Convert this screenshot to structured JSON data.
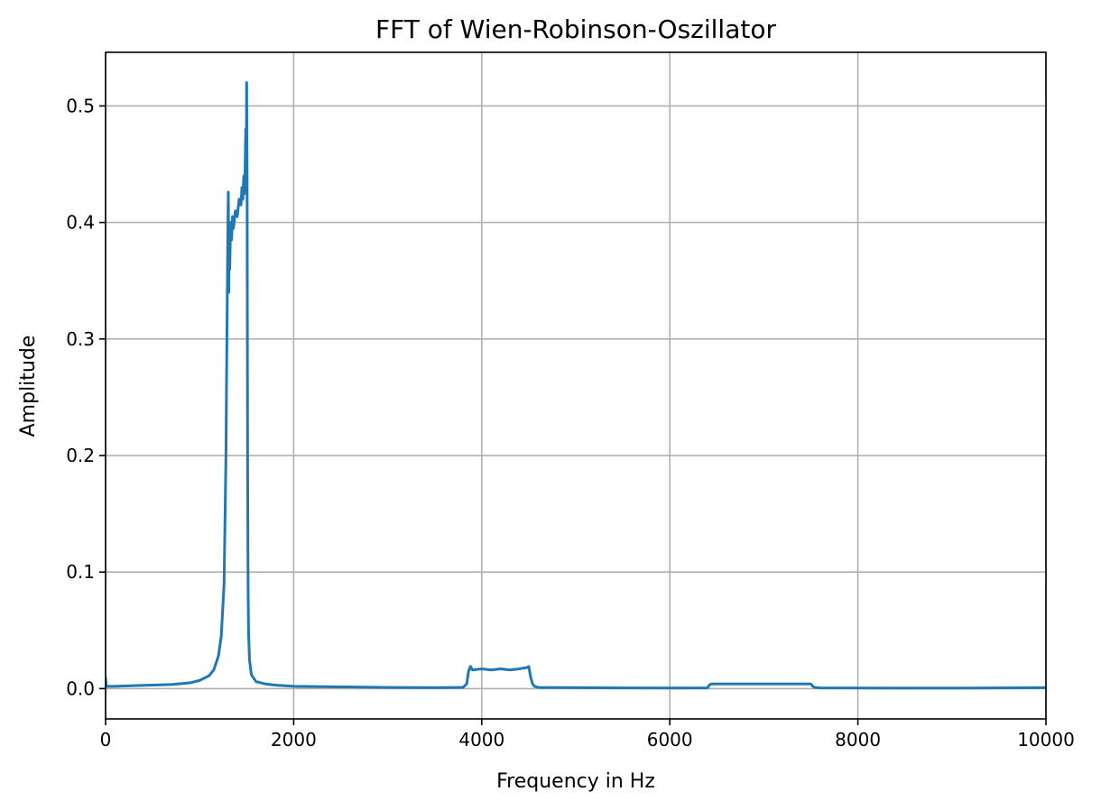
{
  "chart_data": {
    "type": "line",
    "title": "FFT of Wien-Robinson-Oszillator",
    "xlabel": "Frequency in Hz",
    "ylabel": "Amplitude",
    "xlim": [
      0,
      10000
    ],
    "ylim": [
      -0.026,
      0.546
    ],
    "xticks": [
      0,
      2000,
      4000,
      6000,
      8000,
      10000
    ],
    "xtick_labels": [
      "0",
      "2000",
      "4000",
      "6000",
      "8000",
      "10000"
    ],
    "yticks": [
      0.0,
      0.1,
      0.2,
      0.3,
      0.4,
      0.5
    ],
    "ytick_labels": [
      "0.0",
      "0.1",
      "0.2",
      "0.3",
      "0.4",
      "0.5"
    ],
    "grid": true,
    "color": "#1f77b4",
    "series": [
      {
        "x": [
          0,
          5,
          10,
          20,
          100,
          300,
          500,
          700,
          900,
          1000,
          1100,
          1150,
          1200,
          1230,
          1260,
          1280,
          1290,
          1300,
          1305,
          1310,
          1315,
          1320,
          1330,
          1340,
          1350,
          1360,
          1380,
          1400,
          1420,
          1440,
          1450,
          1460,
          1470,
          1480,
          1490,
          1495,
          1500,
          1505,
          1510,
          1515,
          1520,
          1530,
          1550,
          1600,
          1700,
          1800,
          2000,
          2500,
          3000,
          3500,
          3800,
          3840,
          3860,
          3880,
          3900,
          4000,
          4100,
          4200,
          4300,
          4400,
          4480,
          4500,
          4520,
          4540,
          4560,
          4600,
          5000,
          5500,
          6000,
          6400,
          6420,
          6440,
          6500,
          7000,
          7400,
          7500,
          7520,
          7540,
          7600,
          8000,
          8500,
          9000,
          9500,
          10000
        ],
        "y": [
          0.009,
          0.003,
          0.002,
          0.002,
          0.002,
          0.0025,
          0.003,
          0.0035,
          0.005,
          0.007,
          0.011,
          0.016,
          0.028,
          0.045,
          0.09,
          0.2,
          0.3,
          0.39,
          0.426,
          0.34,
          0.39,
          0.36,
          0.4,
          0.385,
          0.405,
          0.395,
          0.41,
          0.405,
          0.42,
          0.415,
          0.43,
          0.42,
          0.44,
          0.425,
          0.48,
          0.43,
          0.52,
          0.43,
          0.2,
          0.09,
          0.05,
          0.025,
          0.012,
          0.006,
          0.004,
          0.003,
          0.002,
          0.0015,
          0.001,
          0.0008,
          0.001,
          0.004,
          0.015,
          0.019,
          0.016,
          0.017,
          0.016,
          0.017,
          0.016,
          0.017,
          0.018,
          0.019,
          0.01,
          0.004,
          0.002,
          0.001,
          0.0008,
          0.0006,
          0.0005,
          0.0006,
          0.003,
          0.004,
          0.004,
          0.004,
          0.004,
          0.004,
          0.002,
          0.001,
          0.0006,
          0.0005,
          0.0004,
          0.0004,
          0.0006,
          0.0008
        ]
      }
    ]
  }
}
